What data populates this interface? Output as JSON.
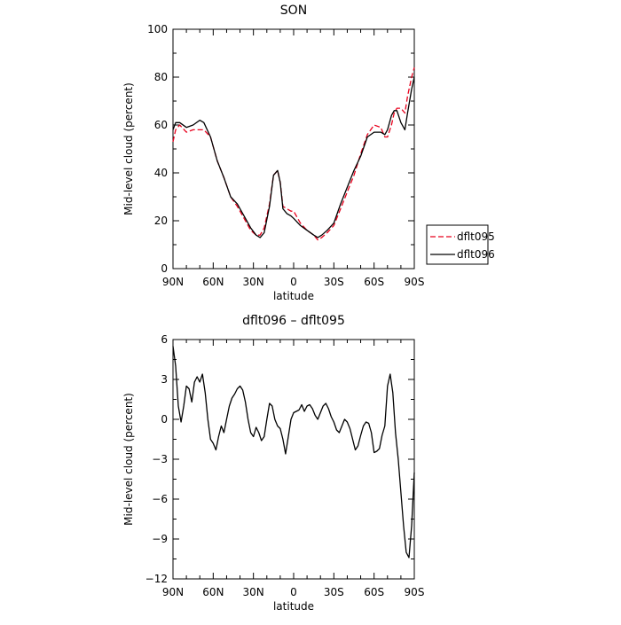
{
  "chart_data": [
    {
      "type": "line",
      "title": "SON",
      "xlabel": "latitude",
      "ylabel": "Mid-level cloud (percent)",
      "xlim": [
        90,
        -90
      ],
      "ylim": [
        0,
        100
      ],
      "xticks": [
        {
          "value": 90,
          "label": "90N"
        },
        {
          "value": 60,
          "label": "60N"
        },
        {
          "value": 30,
          "label": "30N"
        },
        {
          "value": 0,
          "label": "0"
        },
        {
          "value": -30,
          "label": "30S"
        },
        {
          "value": -60,
          "label": "60S"
        },
        {
          "value": -90,
          "label": "90S"
        }
      ],
      "yticks": [
        0,
        20,
        40,
        60,
        80,
        100
      ],
      "legend_position": "right",
      "series": [
        {
          "name": "dflt095",
          "color": "#e8001c",
          "dash": "dashed",
          "x": [
            90,
            88,
            85,
            80,
            75,
            70,
            67,
            62,
            57,
            52,
            47,
            42,
            37,
            32,
            28,
            25,
            22,
            18,
            15,
            12,
            10,
            8,
            5,
            2,
            0,
            -5,
            -10,
            -15,
            -18,
            -21,
            -25,
            -30,
            -35,
            -40,
            -45,
            -50,
            -55,
            -60,
            -65,
            -68,
            -70,
            -73,
            -75,
            -77,
            -80,
            -83,
            -85,
            -88,
            -90
          ],
          "y": [
            53,
            58,
            60,
            57,
            58,
            58,
            58,
            55,
            45,
            38,
            30,
            26,
            21,
            16,
            14,
            14,
            17,
            27,
            39,
            41,
            36,
            26,
            25,
            24,
            24,
            19,
            16,
            14,
            12,
            13,
            15,
            18,
            25,
            32,
            39,
            48,
            56,
            60,
            59,
            55,
            55,
            60,
            65,
            67,
            67,
            65,
            72,
            80,
            84
          ]
        },
        {
          "name": "dflt096",
          "color": "#000000",
          "dash": "solid",
          "x": [
            90,
            88,
            85,
            80,
            75,
            70,
            67,
            62,
            57,
            52,
            47,
            42,
            37,
            32,
            28,
            25,
            22,
            18,
            15,
            12,
            10,
            8,
            5,
            2,
            0,
            -5,
            -10,
            -15,
            -18,
            -21,
            -25,
            -30,
            -35,
            -40,
            -45,
            -50,
            -55,
            -60,
            -65,
            -68,
            -70,
            -73,
            -75,
            -77,
            -80,
            -83,
            -85,
            -88,
            -90
          ],
          "y": [
            58,
            61,
            61,
            59,
            60,
            62,
            61,
            55,
            45,
            38,
            30,
            27,
            22,
            17,
            14,
            13,
            15,
            26,
            39,
            41,
            36,
            25,
            23,
            22,
            21,
            18,
            16,
            14,
            13,
            14,
            16,
            19,
            27,
            34,
            41,
            47,
            55,
            57,
            57,
            56,
            58,
            64,
            66,
            66,
            61,
            58,
            65,
            75,
            80
          ]
        }
      ]
    },
    {
      "type": "line",
      "title": "dflt096 – dflt095",
      "xlabel": "latitude",
      "ylabel": "Mid-level cloud (percent)",
      "xlim": [
        90,
        -90
      ],
      "ylim": [
        -12,
        6
      ],
      "xticks": [
        {
          "value": 90,
          "label": "90N"
        },
        {
          "value": 60,
          "label": "60N"
        },
        {
          "value": 30,
          "label": "30N"
        },
        {
          "value": 0,
          "label": "0"
        },
        {
          "value": -30,
          "label": "30S"
        },
        {
          "value": -60,
          "label": "60S"
        },
        {
          "value": -90,
          "label": "90S"
        }
      ],
      "yticks": [
        -12,
        -9,
        -6,
        -3,
        0,
        3,
        6
      ],
      "series": [
        {
          "color": "#000000",
          "dash": "solid",
          "x": [
            90,
            88,
            86,
            84,
            82,
            80,
            78,
            76,
            74,
            72,
            70,
            68,
            66,
            64,
            62,
            60,
            58,
            56,
            54,
            52,
            50,
            48,
            46,
            44,
            42,
            40,
            38,
            36,
            34,
            32,
            30,
            28,
            26,
            24,
            22,
            20,
            18,
            16,
            14,
            12,
            10,
            8,
            6,
            4,
            2,
            0,
            -2,
            -4,
            -6,
            -8,
            -10,
            -12,
            -14,
            -16,
            -18,
            -20,
            -22,
            -24,
            -26,
            -28,
            -30,
            -32,
            -34,
            -36,
            -38,
            -40,
            -42,
            -44,
            -46,
            -48,
            -50,
            -52,
            -54,
            -56,
            -58,
            -60,
            -62,
            -64,
            -66,
            -68,
            -70,
            -72,
            -74,
            -76,
            -78,
            -80,
            -82,
            -84,
            -86,
            -88,
            -90
          ],
          "y": [
            5.5,
            4.0,
            1.0,
            -0.2,
            1.0,
            2.5,
            2.3,
            1.3,
            2.8,
            3.2,
            2.8,
            3.4,
            2.0,
            0.0,
            -1.5,
            -1.8,
            -2.3,
            -1.3,
            -0.5,
            -1.0,
            0.0,
            1.0,
            1.6,
            1.9,
            2.3,
            2.5,
            2.2,
            1.3,
            0.0,
            -1.0,
            -1.3,
            -0.6,
            -1.0,
            -1.6,
            -1.3,
            0.0,
            1.2,
            1.0,
            0.0,
            -0.5,
            -0.7,
            -1.5,
            -2.6,
            -1.3,
            0.0,
            0.5,
            0.6,
            0.7,
            1.1,
            0.6,
            1.0,
            1.1,
            0.8,
            0.3,
            0.0,
            0.5,
            1.0,
            1.2,
            0.8,
            0.2,
            -0.2,
            -0.8,
            -1.0,
            -0.5,
            0.0,
            -0.2,
            -0.7,
            -1.5,
            -2.3,
            -2.0,
            -1.2,
            -0.5,
            -0.2,
            -0.3,
            -1.0,
            -2.5,
            -2.4,
            -2.2,
            -1.2,
            -0.5,
            2.5,
            3.4,
            2.0,
            -1.0,
            -3.0,
            -5.5,
            -8.0,
            -10.0,
            -10.4,
            -8.0,
            -4.0
          ]
        }
      ]
    }
  ]
}
